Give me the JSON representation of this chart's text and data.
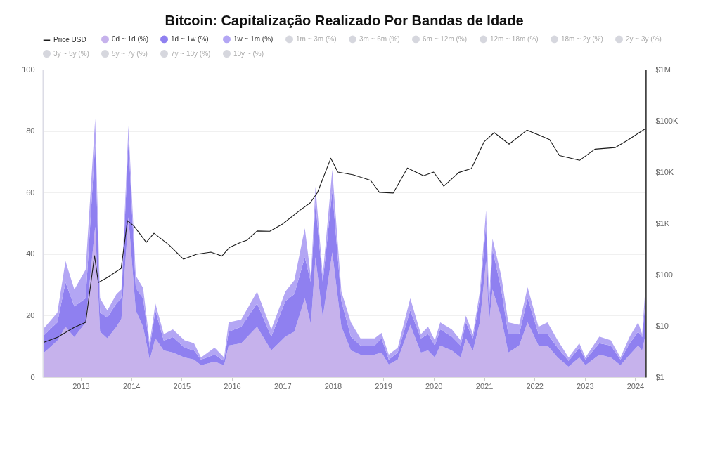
{
  "chart_data": {
    "type": "area",
    "title": "Bitcoin: Capitalização Realizado Por Bandas de Idade",
    "stacked": true,
    "legend": "top left",
    "grid": "y",
    "log": "y2",
    "x": [
      "2012-04-10",
      "2012-07-15",
      "2012-09-12",
      "2012-11-15",
      "2013-02-05",
      "2013-04-15",
      "2013-05-20",
      "2013-07-12",
      "2013-09-16",
      "2013-10-22",
      "2013-12-12",
      "2014-02-03",
      "2014-03-28",
      "2014-05-15",
      "2014-06-25",
      "2014-08-25",
      "2014-10-30",
      "2015-01-22",
      "2015-04-01",
      "2015-05-22",
      "2015-08-28",
      "2015-11-05",
      "2015-12-08",
      "2016-03-08",
      "2016-07-01",
      "2016-10-12",
      "2017-01-22",
      "2017-03-28",
      "2017-06-12",
      "2017-07-26",
      "2017-08-28",
      "2017-10-20",
      "2017-12-28",
      "2018-03-04",
      "2018-05-12",
      "2018-07-20",
      "2018-10-30",
      "2018-12-20",
      "2019-02-10",
      "2019-04-16",
      "2019-07-16",
      "2019-10-01",
      "2019-11-22",
      "2020-01-10",
      "2020-02-18",
      "2020-05-12",
      "2020-07-15",
      "2020-08-22",
      "2020-10-12",
      "2020-12-01",
      "2021-01-15",
      "2021-02-06",
      "2021-03-03",
      "2021-05-05",
      "2021-06-25",
      "2021-09-12",
      "2021-11-12",
      "2022-01-30",
      "2022-04-05",
      "2022-06-18",
      "2022-09-05",
      "2022-11-22",
      "2023-01-05",
      "2023-04-16",
      "2023-07-08",
      "2023-09-16",
      "2023-11-22",
      "2024-01-22",
      "2024-02-20",
      "2024-03-10"
    ],
    "xlim": [
      "2012-04-01",
      "2024-03-15"
    ],
    "xticks": [
      "2013",
      "2014",
      "2015",
      "2016",
      "2017",
      "2018",
      "2019",
      "2020",
      "2021",
      "2022",
      "2023",
      "2024"
    ],
    "ylim": [
      0,
      100
    ],
    "yticks": [
      0,
      20,
      40,
      60,
      80,
      100
    ],
    "y2lim": [
      1,
      1000000
    ],
    "y2ticks": [
      {
        "value": 1,
        "label": "$1"
      },
      {
        "value": 10,
        "label": "$10"
      },
      {
        "value": 100,
        "label": "$100"
      },
      {
        "value": 1000,
        "label": "$1K"
      },
      {
        "value": 10000,
        "label": "$10K"
      },
      {
        "value": 100000,
        "label": "$100K"
      },
      {
        "value": 1000000,
        "label": "$1M"
      }
    ],
    "series": [
      {
        "name": "Price USD",
        "type": "line",
        "axis": "y2",
        "color": "#1a1a1a",
        "x": [
          "2012-04-10",
          "2012-07-15",
          "2012-11-15",
          "2013-02-05",
          "2013-04-10",
          "2013-05-08",
          "2013-07-15",
          "2013-10-20",
          "2013-12-05",
          "2014-01-20",
          "2014-04-20",
          "2014-06-15",
          "2014-10-01",
          "2015-01-15",
          "2015-04-20",
          "2015-08-01",
          "2015-10-20",
          "2015-12-15",
          "2016-03-08",
          "2016-04-20",
          "2016-07-01",
          "2016-10-01",
          "2017-01-01",
          "2017-05-08",
          "2017-07-20",
          "2017-09-12",
          "2017-12-17",
          "2018-02-06",
          "2018-05-25",
          "2018-10-01",
          "2018-12-05",
          "2019-03-15",
          "2019-06-25",
          "2019-10-20",
          "2020-01-01",
          "2020-03-15",
          "2020-07-01",
          "2020-10-01",
          "2021-01-01",
          "2021-03-15",
          "2021-07-01",
          "2021-11-08",
          "2022-04-20",
          "2022-07-01",
          "2022-11-25",
          "2023-03-15",
          "2023-08-08",
          "2023-11-08",
          "2024-03-10"
        ],
        "values": [
          4.8,
          6,
          9.4,
          11.7,
          234,
          70,
          89,
          133,
          1130,
          890,
          425,
          640,
          380,
          200,
          250,
          275,
          230,
          340,
          430,
          470,
          710,
          700,
          970,
          1800,
          2500,
          4000,
          18600,
          10000,
          8900,
          6900,
          4000,
          3900,
          12000,
          8500,
          10000,
          5300,
          9800,
          11700,
          39000,
          59000,
          35000,
          66000,
          43000,
          21000,
          17000,
          28000,
          30000,
          42000,
          69000
        ]
      },
      {
        "name": "0d ~ 1d (%)",
        "color": "#c6b2ec",
        "values": [
          8,
          11.9,
          16.4,
          13,
          17.8,
          49,
          14.8,
          12.6,
          16.4,
          19,
          52,
          21.7,
          16.4,
          5.7,
          12.6,
          8.7,
          8,
          6.4,
          5.7,
          3.9,
          5,
          3.9,
          10.3,
          11,
          16.4,
          8.7,
          13.2,
          14.8,
          25.6,
          17.1,
          39,
          19.4,
          40.6,
          16.4,
          8.7,
          7.3,
          7.3,
          8,
          4.1,
          5.7,
          17,
          8,
          8.7,
          6.4,
          10.3,
          8.7,
          6.4,
          12.6,
          8.7,
          17.8,
          37.7,
          17.8,
          28.5,
          19.4,
          8,
          10.3,
          17.8,
          10.3,
          10.3,
          6.4,
          3.4,
          6.4,
          3.9,
          7.3,
          6.4,
          3.9,
          7.3,
          10.3,
          8.7,
          12.6
        ]
      },
      {
        "name": "1d ~ 1w (%)",
        "color": "#8f80f0",
        "values": [
          5.7,
          5.9,
          14.4,
          10,
          7.8,
          27,
          6.2,
          6.8,
          7.6,
          6.6,
          25,
          7.3,
          9.2,
          3.9,
          9.1,
          3.2,
          5,
          3.2,
          3,
          1.8,
          2.3,
          1.4,
          4.5,
          5.4,
          7.6,
          4.5,
          11.5,
          12.2,
          13.4,
          13.7,
          17.6,
          11.4,
          19.9,
          8.3,
          4.5,
          3,
          3,
          4.6,
          1.6,
          2.3,
          4.7,
          4.6,
          5.3,
          3.9,
          5.2,
          4.5,
          3.9,
          5.2,
          3.9,
          7.8,
          12.1,
          3.9,
          13,
          9.1,
          6,
          3.7,
          7.8,
          3.7,
          3.7,
          3.2,
          1.9,
          3.2,
          1.8,
          3.7,
          3.9,
          1.8,
          3.7,
          4.5,
          4.3,
          9.8
        ]
      },
      {
        "name": "1w ~ 1m (%)",
        "color": "#b3a6f4",
        "values": [
          2.3,
          3.2,
          6.9,
          5.5,
          9.4,
          8,
          4.6,
          2.3,
          3,
          2.9,
          4.7,
          4,
          3.4,
          1.4,
          2.3,
          2.1,
          2.5,
          2.4,
          2.3,
          0.7,
          2.3,
          1.1,
          3,
          2.3,
          3.8,
          2.3,
          3.1,
          4.5,
          9.4,
          1.6,
          5.4,
          2.2,
          6.9,
          3.1,
          4.6,
          2.3,
          2.3,
          1.8,
          1.6,
          1.6,
          3.9,
          1.4,
          2.4,
          1.7,
          2.3,
          2.3,
          1.7,
          2.2,
          1.4,
          2.2,
          4.5,
          3.9,
          3.5,
          4.5,
          3.8,
          3,
          3.6,
          2.4,
          3.8,
          2.4,
          1.1,
          1.4,
          0.7,
          2.2,
          1.7,
          0.7,
          2.2,
          3,
          1,
          3.8
        ]
      },
      {
        "name": "1m ~ 3m (%)",
        "color": "#d6d7de",
        "values": [
          null,
          null,
          null,
          null,
          null,
          null,
          null,
          null,
          null,
          null,
          null,
          null,
          null,
          null,
          null,
          null,
          null,
          null,
          null,
          null,
          null,
          null,
          null,
          null,
          null,
          null,
          null,
          null,
          null,
          null,
          null,
          null,
          null,
          null,
          null,
          null,
          null,
          null,
          null,
          null,
          null,
          null,
          null,
          null,
          null,
          null,
          null,
          null,
          null,
          null,
          null,
          null,
          null,
          null,
          null,
          null,
          null,
          null,
          null,
          null,
          null,
          null,
          null,
          null,
          null,
          null,
          null,
          null,
          null,
          null
        ]
      },
      {
        "name": "3m ~ 6m (%)",
        "color": "#d6d7de",
        "values": [
          null,
          null,
          null,
          null,
          null,
          null,
          null,
          null,
          null,
          null,
          null,
          null,
          null,
          null,
          null,
          null,
          null,
          null,
          null,
          null,
          null,
          null,
          null,
          null,
          null,
          null,
          null,
          null,
          null,
          null,
          null,
          null,
          null,
          null,
          null,
          null,
          null,
          null,
          null,
          null,
          null,
          null,
          null,
          null,
          null,
          null,
          null,
          null,
          null,
          null,
          null,
          null,
          null,
          null,
          null,
          null,
          null,
          null,
          null,
          null,
          null,
          null,
          null,
          null,
          null,
          null,
          null,
          null,
          null,
          null
        ]
      },
      {
        "name": "6m ~ 12m (%)",
        "color": "#d6d7de",
        "values": [
          null,
          null,
          null,
          null,
          null,
          null,
          null,
          null,
          null,
          null,
          null,
          null,
          null,
          null,
          null,
          null,
          null,
          null,
          null,
          null,
          null,
          null,
          null,
          null,
          null,
          null,
          null,
          null,
          null,
          null,
          null,
          null,
          null,
          null,
          null,
          null,
          null,
          null,
          null,
          null,
          null,
          null,
          null,
          null,
          null,
          null,
          null,
          null,
          null,
          null,
          null,
          null,
          null,
          null,
          null,
          null,
          null,
          null,
          null,
          null,
          null,
          null,
          null,
          null,
          null,
          null,
          null,
          null,
          null,
          null
        ]
      },
      {
        "name": "12m ~ 18m (%)",
        "color": "#d6d7de",
        "values": [
          null,
          null,
          null,
          null,
          null,
          null,
          null,
          null,
          null,
          null,
          null,
          null,
          null,
          null,
          null,
          null,
          null,
          null,
          null,
          null,
          null,
          null,
          null,
          null,
          null,
          null,
          null,
          null,
          null,
          null,
          null,
          null,
          null,
          null,
          null,
          null,
          null,
          null,
          null,
          null,
          null,
          null,
          null,
          null,
          null,
          null,
          null,
          null,
          null,
          null,
          null,
          null,
          null,
          null,
          null,
          null,
          null,
          null,
          null,
          null,
          null,
          null,
          null,
          null,
          null,
          null,
          null,
          null,
          null,
          null
        ]
      },
      {
        "name": "18m ~ 2y (%)",
        "color": "#d6d7de",
        "values": [
          null,
          null,
          null,
          null,
          null,
          null,
          null,
          null,
          null,
          null,
          null,
          null,
          null,
          null,
          null,
          null,
          null,
          null,
          null,
          null,
          null,
          null,
          null,
          null,
          null,
          null,
          null,
          null,
          null,
          null,
          null,
          null,
          null,
          null,
          null,
          null,
          null,
          null,
          null,
          null,
          null,
          null,
          null,
          null,
          null,
          null,
          null,
          null,
          null,
          null,
          null,
          null,
          null,
          null,
          null,
          null,
          null,
          null,
          null,
          null,
          null,
          null,
          null,
          null,
          null,
          null,
          null,
          null,
          null,
          null
        ]
      },
      {
        "name": "2y ~ 3y (%)",
        "color": "#d6d7de",
        "values": [
          null,
          null,
          null,
          null,
          null,
          null,
          null,
          null,
          null,
          null,
          null,
          null,
          null,
          null,
          null,
          null,
          null,
          null,
          null,
          null,
          null,
          null,
          null,
          null,
          null,
          null,
          null,
          null,
          null,
          null,
          null,
          null,
          null,
          null,
          null,
          null,
          null,
          null,
          null,
          null,
          null,
          null,
          null,
          null,
          null,
          null,
          null,
          null,
          null,
          null,
          null,
          null,
          null,
          null,
          null,
          null,
          null,
          null,
          null,
          null,
          null,
          null,
          null,
          null,
          null,
          null,
          null,
          null,
          null,
          null
        ]
      },
      {
        "name": "3y ~ 5y (%)",
        "color": "#d6d7de",
        "values": [
          null,
          null,
          null,
          null,
          null,
          null,
          null,
          null,
          null,
          null,
          null,
          null,
          null,
          null,
          null,
          null,
          null,
          null,
          null,
          null,
          null,
          null,
          null,
          null,
          null,
          null,
          null,
          null,
          null,
          null,
          null,
          null,
          null,
          null,
          null,
          null,
          null,
          null,
          null,
          null,
          null,
          null,
          null,
          null,
          null,
          null,
          null,
          null,
          null,
          null,
          null,
          null,
          null,
          null,
          null,
          null,
          null,
          null,
          null,
          null,
          null,
          null,
          null,
          null,
          null,
          null,
          null,
          null,
          null,
          null
        ]
      },
      {
        "name": "5y ~ 7y (%)",
        "color": "#d6d7de",
        "values": [
          null,
          null,
          null,
          null,
          null,
          null,
          null,
          null,
          null,
          null,
          null,
          null,
          null,
          null,
          null,
          null,
          null,
          null,
          null,
          null,
          null,
          null,
          null,
          null,
          null,
          null,
          null,
          null,
          null,
          null,
          null,
          null,
          null,
          null,
          null,
          null,
          null,
          null,
          null,
          null,
          null,
          null,
          null,
          null,
          null,
          null,
          null,
          null,
          null,
          null,
          null,
          null,
          null,
          null,
          null,
          null,
          null,
          null,
          null,
          null,
          null,
          null,
          null,
          null,
          null,
          null,
          null,
          null,
          null,
          null
        ]
      },
      {
        "name": "7y ~ 10y (%)",
        "color": "#d6d7de",
        "values": [
          null,
          null,
          null,
          null,
          null,
          null,
          null,
          null,
          null,
          null,
          null,
          null,
          null,
          null,
          null,
          null,
          null,
          null,
          null,
          null,
          null,
          null,
          null,
          null,
          null,
          null,
          null,
          null,
          null,
          null,
          null,
          null,
          null,
          null,
          null,
          null,
          null,
          null,
          null,
          null,
          null,
          null,
          null,
          null,
          null,
          null,
          null,
          null,
          null,
          null,
          null,
          null,
          null,
          null,
          null,
          null,
          null,
          null,
          null,
          null,
          null,
          null,
          null,
          null,
          null,
          null,
          null,
          null,
          null,
          null
        ]
      },
      {
        "name": "10y ~ (%)",
        "color": "#d6d7de",
        "values": [
          null,
          null,
          null,
          null,
          null,
          null,
          null,
          null,
          null,
          null,
          null,
          null,
          null,
          null,
          null,
          null,
          null,
          null,
          null,
          null,
          null,
          null,
          null,
          null,
          null,
          null,
          null,
          null,
          null,
          null,
          null,
          null,
          null,
          null,
          null,
          null,
          null,
          null,
          null,
          null,
          null,
          null,
          null,
          null,
          null,
          null,
          null,
          null,
          null,
          null,
          null,
          null,
          null,
          null,
          null,
          null,
          null,
          null,
          null,
          null,
          null,
          null,
          null,
          null,
          null,
          null,
          null,
          null,
          null,
          null
        ]
      }
    ]
  }
}
